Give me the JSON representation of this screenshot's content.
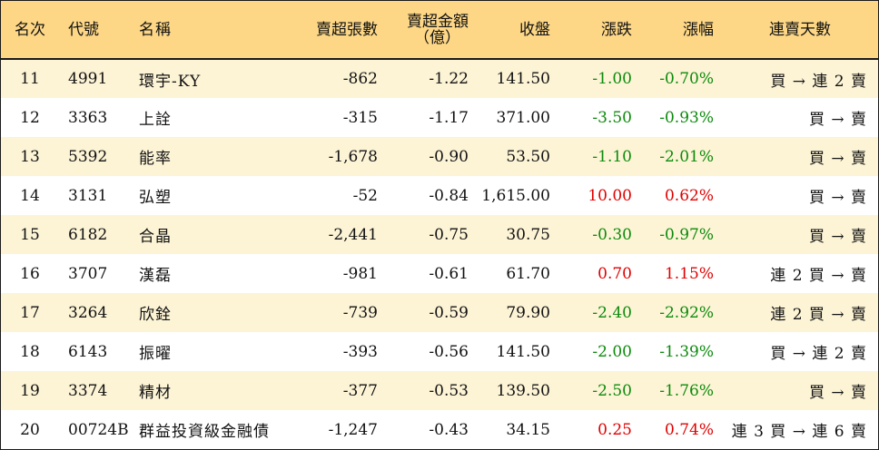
{
  "header": {
    "rank": "名次",
    "code": "代號",
    "name": "名稱",
    "net_sell_lots": "賣超張數",
    "net_sell_amount_line1": "賣超金額",
    "net_sell_amount_line2": "（億）",
    "close": "收盤",
    "change": "漲跌",
    "change_pct": "漲幅",
    "streak": "連賣天數"
  },
  "colors": {
    "header_bg": "#fdd786",
    "odd_row_bg": "#fdf4d6",
    "negative": "#0b8a0b",
    "positive": "#e00000"
  },
  "rows": [
    {
      "rank": "11",
      "code": "4991",
      "name": "環宇-KY",
      "lots": "-862",
      "amount": "-1.22",
      "close": "141.50",
      "change": "-1.00",
      "pct": "-0.70%",
      "streak": "買 → 連 2 賣",
      "trend": "neg"
    },
    {
      "rank": "12",
      "code": "3363",
      "name": "上詮",
      "lots": "-315",
      "amount": "-1.17",
      "close": "371.00",
      "change": "-3.50",
      "pct": "-0.93%",
      "streak": "買 → 賣",
      "trend": "neg"
    },
    {
      "rank": "13",
      "code": "5392",
      "name": "能率",
      "lots": "-1,678",
      "amount": "-0.90",
      "close": "53.50",
      "change": "-1.10",
      "pct": "-2.01%",
      "streak": "買 → 賣",
      "trend": "neg"
    },
    {
      "rank": "14",
      "code": "3131",
      "name": "弘塑",
      "lots": "-52",
      "amount": "-0.84",
      "close": "1,615.00",
      "change": "10.00",
      "pct": "0.62%",
      "streak": "買 → 賣",
      "trend": "pos"
    },
    {
      "rank": "15",
      "code": "6182",
      "name": "合晶",
      "lots": "-2,441",
      "amount": "-0.75",
      "close": "30.75",
      "change": "-0.30",
      "pct": "-0.97%",
      "streak": "買 → 賣",
      "trend": "neg"
    },
    {
      "rank": "16",
      "code": "3707",
      "name": "漢磊",
      "lots": "-981",
      "amount": "-0.61",
      "close": "61.70",
      "change": "0.70",
      "pct": "1.15%",
      "streak": "連 2 買 → 賣",
      "trend": "pos"
    },
    {
      "rank": "17",
      "code": "3264",
      "name": "欣銓",
      "lots": "-739",
      "amount": "-0.59",
      "close": "79.90",
      "change": "-2.40",
      "pct": "-2.92%",
      "streak": "連 2 買 → 賣",
      "trend": "neg"
    },
    {
      "rank": "18",
      "code": "6143",
      "name": "振曜",
      "lots": "-393",
      "amount": "-0.56",
      "close": "141.50",
      "change": "-2.00",
      "pct": "-1.39%",
      "streak": "買 → 連 2 賣",
      "trend": "neg"
    },
    {
      "rank": "19",
      "code": "3374",
      "name": "精材",
      "lots": "-377",
      "amount": "-0.53",
      "close": "139.50",
      "change": "-2.50",
      "pct": "-1.76%",
      "streak": "買 → 賣",
      "trend": "neg"
    },
    {
      "rank": "20",
      "code": "00724B",
      "name": "群益投資級金融債",
      "lots": "-1,247",
      "amount": "-0.43",
      "close": "34.15",
      "change": "0.25",
      "pct": "0.74%",
      "streak": "連 3 買 → 連 6 賣",
      "trend": "pos"
    }
  ]
}
